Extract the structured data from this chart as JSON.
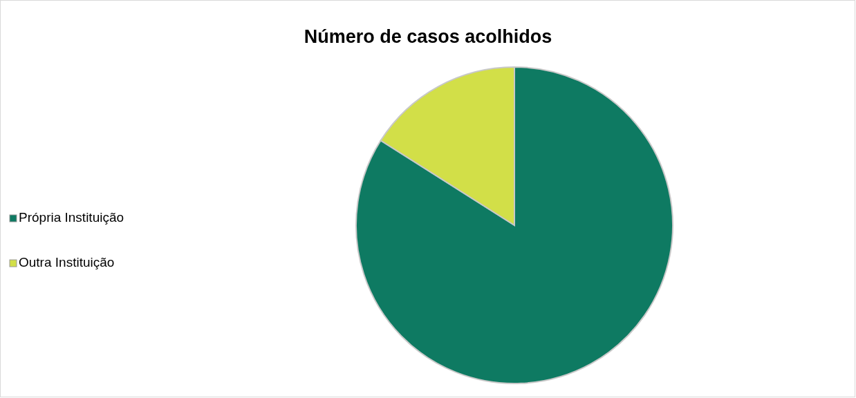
{
  "chart_data": {
    "type": "pie",
    "title": "Número de casos acolhidos",
    "categories": [
      "Própria Instituição",
      "Outra Instituição"
    ],
    "values": [
      84,
      16
    ],
    "colors": [
      "#0e7a62",
      "#d2df48"
    ],
    "legend": "left"
  }
}
